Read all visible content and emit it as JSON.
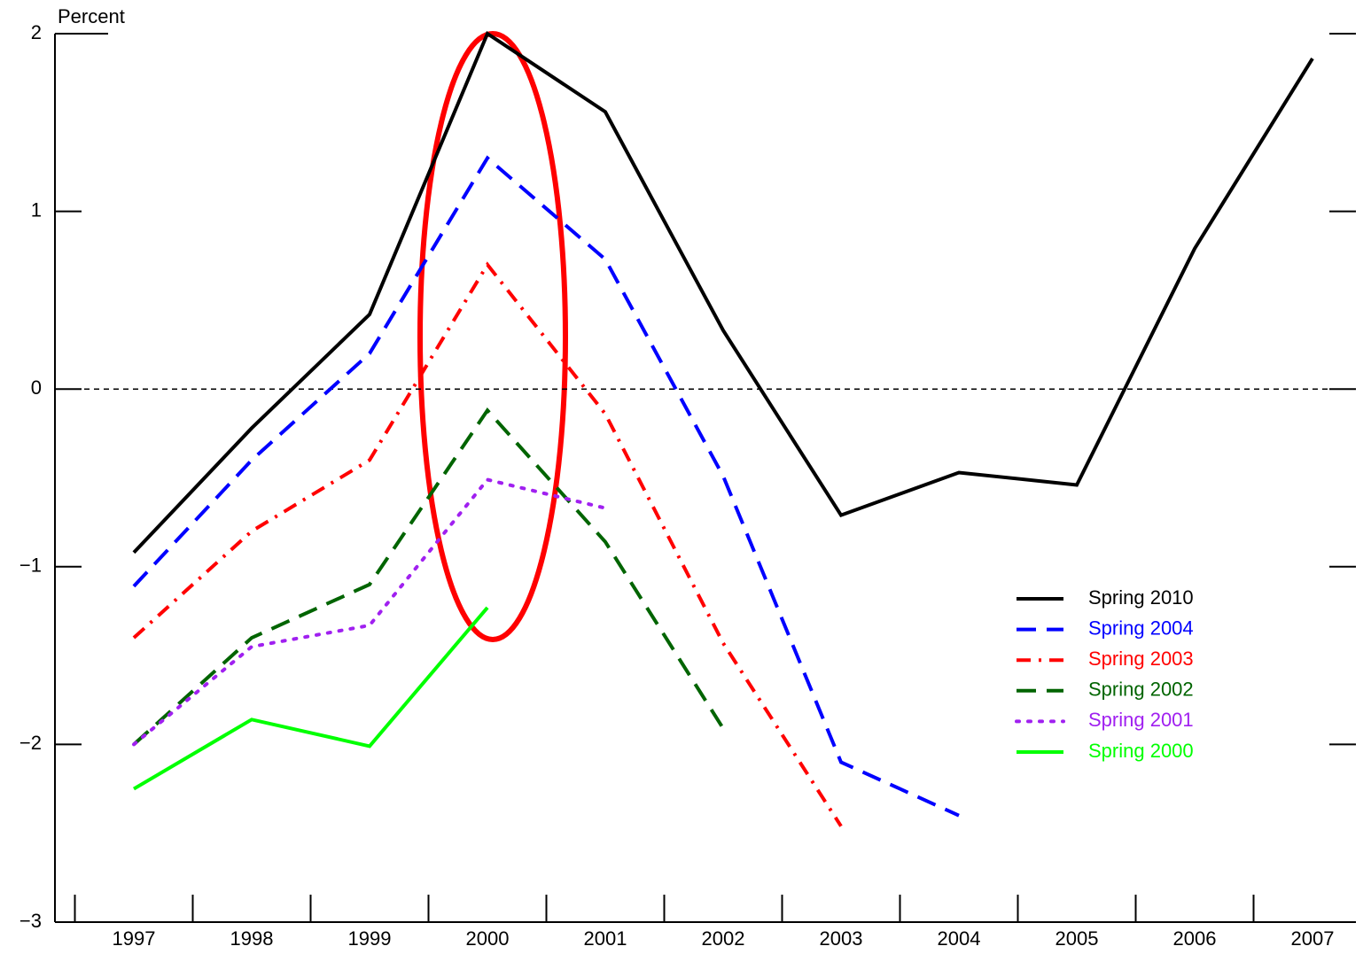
{
  "chart_data": {
    "type": "line",
    "y_axis_label": "Percent",
    "categories": [
      "1997",
      "1998",
      "1999",
      "2000",
      "2001",
      "2002",
      "2003",
      "2004",
      "2005",
      "2006",
      "2007"
    ],
    "series": [
      {
        "name": "Spring 2010",
        "color": "#000000",
        "style": "solid",
        "values": [
          -0.92,
          -0.22,
          0.42,
          2.0,
          1.56,
          0.33,
          -0.71,
          -0.47,
          -0.54,
          0.79,
          1.86
        ]
      },
      {
        "name": "Spring 2004",
        "color": "#0000ff",
        "style": "dashed",
        "values": [
          -1.11,
          -0.4,
          0.2,
          1.3,
          0.73,
          -0.49,
          -2.1,
          -2.4,
          null,
          null,
          null
        ]
      },
      {
        "name": "Spring 2003",
        "color": "#ff0000",
        "style": "dashdot",
        "values": [
          -1.4,
          -0.8,
          -0.4,
          0.7,
          -0.14,
          -1.43,
          -2.46,
          null,
          null,
          null,
          null
        ]
      },
      {
        "name": "Spring 2002",
        "color": "#006400",
        "style": "dashed",
        "values": [
          -2.0,
          -1.4,
          -1.1,
          -0.12,
          -0.86,
          -1.91,
          null,
          null,
          null,
          null,
          null
        ]
      },
      {
        "name": "Spring 2001",
        "color": "#a020f0",
        "style": "dotted",
        "values": [
          -2.0,
          -1.45,
          -1.33,
          -0.51,
          -0.67,
          null,
          null,
          null,
          null,
          null,
          null
        ]
      },
      {
        "name": "Spring 2000",
        "color": "#00ff00",
        "style": "solid",
        "values": [
          -2.25,
          -1.86,
          -2.01,
          -1.23,
          null,
          null,
          null,
          null,
          null,
          null,
          null
        ]
      }
    ],
    "ylim": [
      -3,
      2
    ],
    "yticks": [
      {
        "value": -3,
        "label": "−3"
      },
      {
        "value": -2,
        "label": "−2"
      },
      {
        "value": -1,
        "label": "−1"
      },
      0,
      1,
      2
    ],
    "zero_line": true
  }
}
